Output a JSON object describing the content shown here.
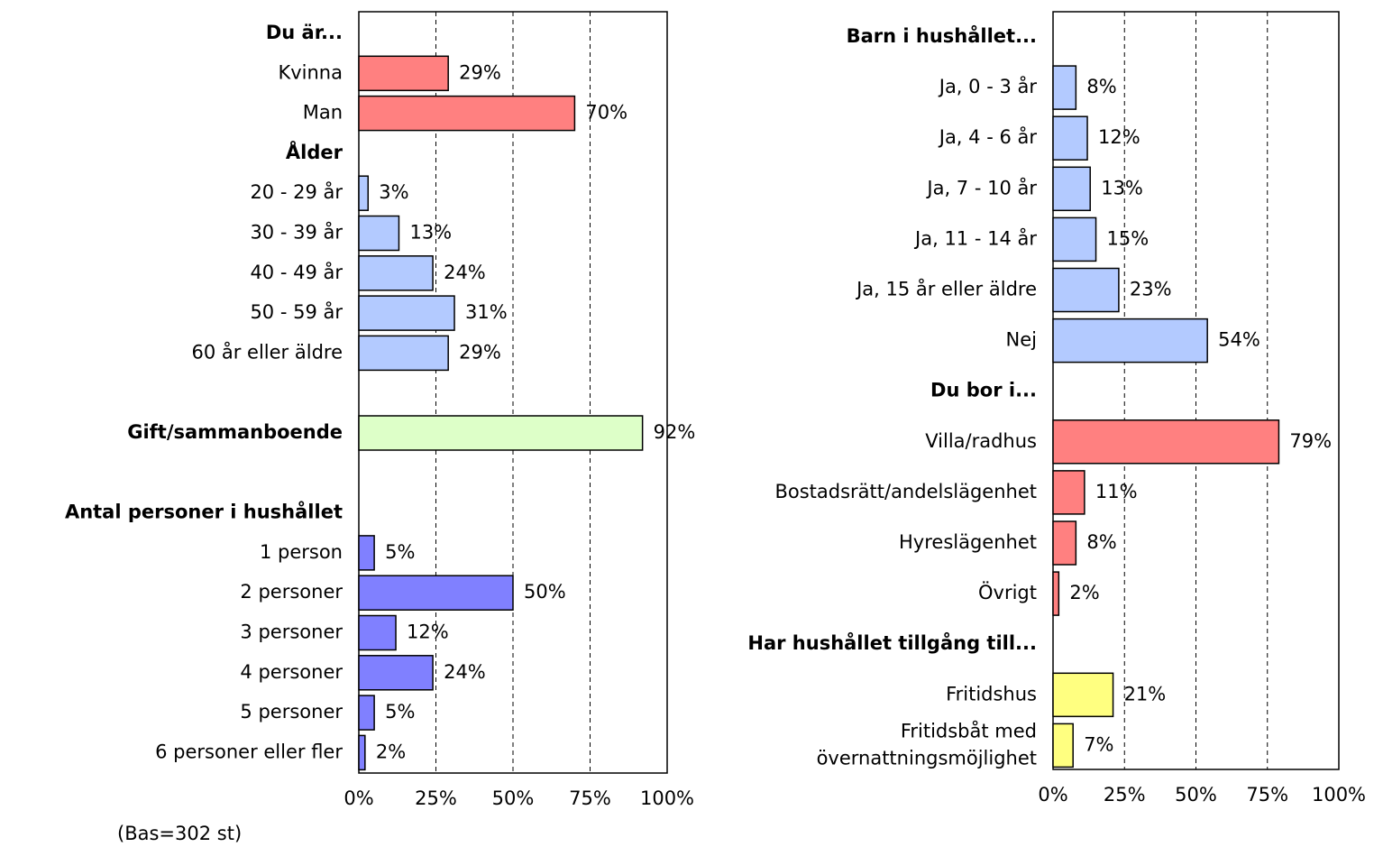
{
  "chart_data": [
    {
      "type": "bar",
      "orientation": "horizontal",
      "groups": [
        {
          "title": "Du är...",
          "color": "#ff8080",
          "categories": [
            "Kvinna",
            "Man"
          ],
          "values": [
            29,
            70
          ],
          "value_labels": [
            "29%",
            "70%"
          ]
        },
        {
          "title": "Ålder",
          "color": "#b3caff",
          "categories": [
            "20 - 29 år",
            "30 - 39 år",
            "40 - 49 år",
            "50 - 59 år",
            "60 år eller äldre"
          ],
          "values": [
            3,
            13,
            24,
            31,
            29
          ],
          "value_labels": [
            "3%",
            "13%",
            "24%",
            "31%",
            "29%"
          ]
        },
        {
          "color": "#ddffc8",
          "bold": true,
          "categories": [
            "Gift/sammanboende"
          ],
          "values": [
            92
          ],
          "value_labels": [
            "92%"
          ]
        },
        {
          "title": "Antal personer i hushållet",
          "color": "#8080ff",
          "categories": [
            "1 person",
            "2 personer",
            "3 personer",
            "4 personer",
            "5 personer",
            "6 personer eller fler"
          ],
          "values": [
            5,
            50,
            12,
            24,
            5,
            2
          ],
          "value_labels": [
            "5%",
            "50%",
            "12%",
            "24%",
            "5%",
            "2%"
          ]
        }
      ],
      "xlim": [
        0,
        100
      ],
      "xticks": [
        {
          "value": 0,
          "label": "0%"
        },
        {
          "value": 25,
          "label": "25%"
        },
        {
          "value": 50,
          "label": "50%"
        },
        {
          "value": 75,
          "label": "75%"
        },
        {
          "value": 100,
          "label": "100%"
        }
      ],
      "grid": true
    },
    {
      "type": "bar",
      "orientation": "horizontal",
      "groups": [
        {
          "title": "Barn i hushållet...",
          "color": "#b3caff",
          "categories": [
            "Ja, 0 - 3 år",
            "Ja, 4 - 6 år",
            "Ja, 7 - 10 år",
            "Ja, 11 - 14 år",
            "Ja, 15 år eller äldre",
            "Nej"
          ],
          "values": [
            8,
            12,
            13,
            15,
            23,
            54
          ],
          "value_labels": [
            "8%",
            "12%",
            "13%",
            "15%",
            "23%",
            "54%"
          ]
        },
        {
          "title": "Du bor i...",
          "color": "#ff8080",
          "categories": [
            "Villa/radhus",
            "Bostadsrätt/andelslägenhet",
            "Hyreslägenhet",
            "Övrigt"
          ],
          "values": [
            79,
            11,
            8,
            2
          ],
          "value_labels": [
            "79%",
            "11%",
            "8%",
            "2%"
          ]
        },
        {
          "title": "Har hushållet tillgång till...",
          "color": "#ffff80",
          "categories": [
            "Fritidshus",
            [
              "Fritidsbåt med",
              "övernattningsmöjlighet"
            ]
          ],
          "values": [
            21,
            7
          ],
          "value_labels": [
            "21%",
            "7%"
          ]
        }
      ],
      "xlim": [
        0,
        100
      ],
      "xticks": [
        {
          "value": 0,
          "label": "0%"
        },
        {
          "value": 25,
          "label": "25%"
        },
        {
          "value": 50,
          "label": "50%"
        },
        {
          "value": 75,
          "label": "75%"
        },
        {
          "value": 100,
          "label": "100%"
        }
      ],
      "grid": true
    }
  ],
  "note": "(Bas=302 st)"
}
